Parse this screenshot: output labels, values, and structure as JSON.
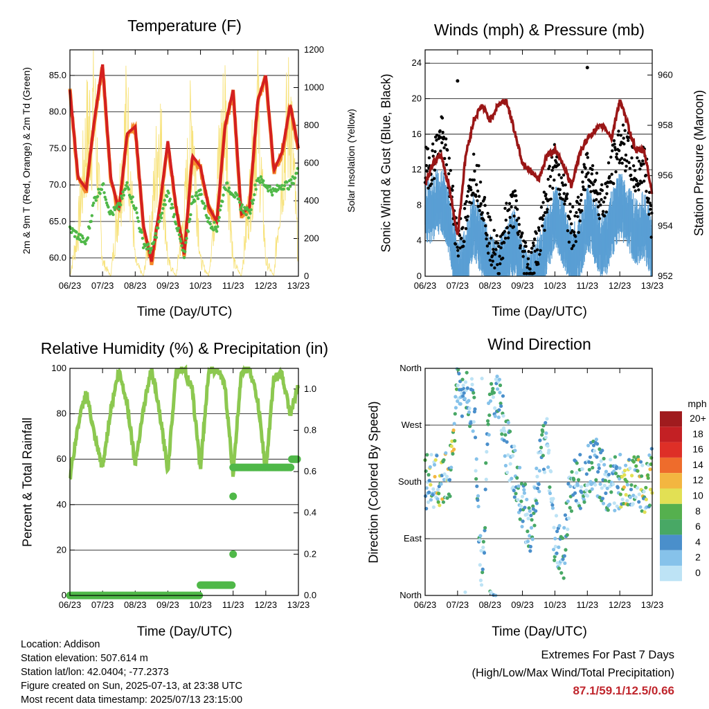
{
  "panels": {
    "temperature": {
      "title": "Temperature (F)",
      "xlabel": "Time (Day/UTC)",
      "ylabel_left": "2m & 9m T (Red, Orange) & 2m Td (Green)",
      "ylabel_right": "Solar Insolation (Yellow)"
    },
    "winds": {
      "title": "Winds (mph) & Pressure (mb)",
      "xlabel": "Time (Day/UTC)",
      "ylabel_left": "Sonic Wind & Gust (Blue, Black)",
      "ylabel_right": "Station Pressure (Maroon)"
    },
    "humidity": {
      "title": "Relative Humidity (%) & Precipitation (in)",
      "xlabel": "Time (Day/UTC)",
      "ylabel_left": "Percent & Total Rainfall"
    },
    "direction": {
      "title": "Wind Direction",
      "xlabel": "Time (Day/UTC)",
      "ylabel_left": "Direction (Colored By Speed)"
    }
  },
  "info": {
    "location": "Location: Addison",
    "elevation": "Station elevation: 507.614 m",
    "latlon": "Station lat/lon: 42.0404; -77.2373",
    "created": "Figure created on Sun, 2025-07-13, at 23:38 UTC",
    "recent": "Most recent data timestamp: 2025/07/13 23:15:00"
  },
  "extremes": {
    "line1": "Extremes For Past 7 Days",
    "line2": "(High/Low/Max Wind/Total Precipitation)",
    "values": "87.1/59.1/12.5/0.66"
  },
  "colors": {
    "temp2m": "#d42020",
    "temp9m": "#f58a2a",
    "dewpoint": "#4fb848",
    "solar": "#f7e27a",
    "wind": "#5a9fd4",
    "gust": "#000000",
    "pressure": "#9a1616",
    "humidity": "#8cc850",
    "rain": "#4fb848"
  },
  "chart_data": [
    {
      "type": "line",
      "title": "Temperature (F)",
      "xlabel": "Time (Day/UTC)",
      "ylabel": "2m & 9m T (Red, Orange) & 2m Td (Green)",
      "ylabel_right": "Solar Insolation (Yellow)",
      "x_ticks": [
        "06/23",
        "07/23",
        "08/23",
        "09/23",
        "10/23",
        "11/23",
        "12/23",
        "13/23"
      ],
      "y_ticks": [
        "60.0",
        "65.0",
        "70.0",
        "75.0",
        "80.0",
        "85.0"
      ],
      "y_right_ticks": [
        "0",
        "200",
        "400",
        "600",
        "800",
        "1000",
        "1200"
      ],
      "ylim": [
        57.5,
        88.5
      ],
      "y_right_lim": [
        0,
        1200
      ],
      "x": [
        0,
        0.25,
        0.5,
        0.75,
        1,
        1.25,
        1.5,
        1.75,
        2,
        2.25,
        2.5,
        2.75,
        3,
        3.25,
        3.5,
        3.75,
        4,
        4.25,
        4.5,
        4.75,
        5,
        5.25,
        5.5,
        5.75,
        6,
        6.25,
        6.5,
        6.75,
        7
      ],
      "series": [
        {
          "name": "2m T",
          "values": [
            83,
            71,
            69.5,
            79,
            86.5,
            71,
            66.5,
            77,
            78,
            64.5,
            59.5,
            67,
            76,
            67,
            60.5,
            74,
            72.5,
            67,
            65,
            78,
            83,
            66,
            67,
            81.5,
            85,
            72,
            74.5,
            81,
            75
          ]
        },
        {
          "name": "2m Td",
          "values": [
            64,
            63,
            62,
            68,
            70,
            66,
            67,
            70,
            67,
            62,
            61,
            65,
            69,
            65,
            60,
            68,
            69,
            65,
            64,
            70,
            69,
            67,
            66,
            71,
            70,
            69,
            70,
            70,
            72
          ]
        },
        {
          "name": "Solar Insolation",
          "values": [
            0,
            300,
            900,
            1100,
            100,
            0,
            500,
            1050,
            100,
            0,
            350,
            1000,
            100,
            0,
            400,
            1050,
            100,
            0,
            600,
            1100,
            100,
            0,
            500,
            1100,
            100,
            0,
            700,
            1120,
            100
          ]
        }
      ]
    },
    {
      "type": "scatter",
      "title": "Winds (mph) & Pressure (mb)",
      "xlabel": "Time (Day/UTC)",
      "ylabel": "Sonic Wind & Gust (Blue, Black)",
      "ylabel_right": "Station Pressure (Maroon)",
      "x_ticks": [
        "06/23",
        "07/23",
        "08/23",
        "09/23",
        "10/23",
        "11/23",
        "12/23",
        "13/23"
      ],
      "y_ticks": [
        "0",
        "4",
        "8",
        "12",
        "16",
        "20",
        "24"
      ],
      "y_right_ticks": [
        "952",
        "954",
        "956",
        "958",
        "960"
      ],
      "ylim": [
        0,
        25.5
      ],
      "y_right_lim": [
        952,
        961
      ],
      "x": [
        0,
        0.25,
        0.5,
        0.75,
        1,
        1.25,
        1.5,
        1.75,
        2,
        2.25,
        2.5,
        2.75,
        3,
        3.25,
        3.5,
        3.75,
        4,
        4.25,
        4.5,
        4.75,
        5,
        5.25,
        5.5,
        5.75,
        6,
        6.25,
        6.5,
        6.75,
        7
      ],
      "series": [
        {
          "name": "Sonic Wind",
          "values": [
            8,
            9,
            10,
            7,
            1,
            3,
            7,
            5,
            2,
            1,
            3,
            5,
            1,
            0,
            2,
            5,
            8,
            6,
            3,
            4,
            8,
            6,
            4,
            7,
            9,
            8,
            6,
            7,
            4
          ]
        },
        {
          "name": "Gust",
          "values": [
            12,
            13,
            16,
            11,
            4,
            6,
            12,
            9,
            4,
            2,
            6,
            8,
            3,
            1,
            4,
            9,
            13,
            10,
            5,
            7,
            13,
            10,
            8,
            12,
            15,
            14,
            11,
            13,
            6
          ]
        },
        {
          "name": "Station Pressure",
          "values": [
            955.7,
            956.5,
            956.8,
            955.5,
            953.6,
            956.8,
            958.2,
            958.8,
            958.2,
            958.8,
            959,
            957.8,
            956.5,
            956.2,
            955.8,
            956.8,
            957,
            956.5,
            955.6,
            956.8,
            957.5,
            957.8,
            958,
            957.5,
            959,
            958,
            957,
            957,
            955.3
          ]
        }
      ]
    },
    {
      "type": "line",
      "title": "Relative Humidity (%) & Precipitation (in)",
      "xlabel": "Time (Day/UTC)",
      "ylabel": "Percent & Total Rainfall",
      "x_ticks": [
        "06/23",
        "07/23",
        "08/23",
        "09/23",
        "10/23",
        "11/23",
        "12/23",
        "13/23"
      ],
      "y_ticks": [
        "0",
        "20",
        "40",
        "60",
        "80",
        "100"
      ],
      "y_right_ticks": [
        "0.0",
        "0.2",
        "0.4",
        "0.6",
        "0.8",
        "1.0"
      ],
      "ylim": [
        0,
        100
      ],
      "y_right_lim": [
        0,
        1.1
      ],
      "x": [
        0,
        0.25,
        0.5,
        0.75,
        1,
        1.25,
        1.5,
        1.75,
        2,
        2.25,
        2.5,
        2.75,
        3,
        3.25,
        3.5,
        3.75,
        4,
        4.25,
        4.5,
        4.75,
        5,
        5.25,
        5.5,
        5.75,
        6,
        6.25,
        6.5,
        6.75,
        7
      ],
      "series": [
        {
          "name": "Relative Humidity",
          "values": [
            52,
            75,
            90,
            70,
            56,
            82,
            99,
            85,
            58,
            82,
            100,
            80,
            55,
            99,
            100,
            90,
            56,
            99,
            100,
            92,
            53,
            99,
            100,
            86,
            55,
            96,
            97,
            80,
            92
          ]
        },
        {
          "name": "Total Rainfall",
          "values": [
            0,
            0,
            0,
            0,
            0,
            0,
            0,
            0,
            0,
            0,
            0,
            0,
            0,
            0,
            0,
            0,
            0.05,
            0.05,
            0.05,
            0.05,
            0.62,
            0.62,
            0.62,
            0.62,
            0.62,
            0.62,
            0.62,
            0.62,
            0.66
          ]
        }
      ]
    },
    {
      "type": "scatter",
      "title": "Wind Direction",
      "xlabel": "Time (Day/UTC)",
      "ylabel": "Direction (Colored By Speed)",
      "x_ticks": [
        "06/23",
        "07/23",
        "08/23",
        "09/23",
        "10/23",
        "11/23",
        "12/23",
        "13/23"
      ],
      "y_ticks": [
        "North",
        "East",
        "South",
        "West",
        "North"
      ],
      "ylim": [
        0,
        360
      ],
      "legend": {
        "title": "mph",
        "labels": [
          "20+",
          "18",
          "16",
          "14",
          "12",
          "10",
          "8",
          "6",
          "4",
          "2",
          "0"
        ],
        "placement": "right"
      },
      "x": [
        0,
        0.25,
        0.5,
        0.75,
        1,
        1.25,
        1.5,
        1.75,
        2,
        2.25,
        2.5,
        2.75,
        3,
        3.25,
        3.5,
        3.75,
        4,
        4.25,
        4.5,
        4.75,
        5,
        5.25,
        5.5,
        5.75,
        6,
        6.25,
        6.5,
        6.75,
        7
      ],
      "series": [
        {
          "name": "Direction",
          "values": [
            180,
            178,
            185,
            190,
            330,
            320,
            300,
            10,
            330,
            320,
            240,
            200,
            150,
            100,
            200,
            250,
            90,
            60,
            170,
            180,
            200,
            210,
            180,
            175,
            180,
            185,
            180,
            175,
            190
          ]
        }
      ]
    }
  ]
}
